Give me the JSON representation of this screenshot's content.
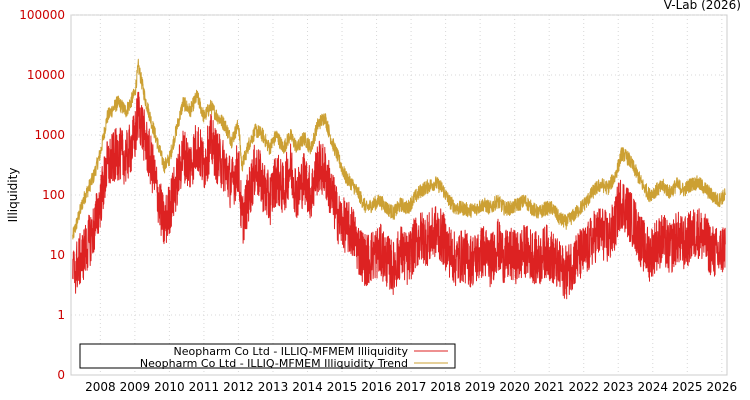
{
  "credit": "V-Lab (2026)",
  "chart_data": {
    "type": "line",
    "title": "",
    "xlabel": "",
    "ylabel": "Illiquidity",
    "yscale": "log",
    "ylim": [
      0.1,
      100000
    ],
    "xlim": [
      2007.15,
      2026.15
    ],
    "y_ticks": [
      {
        "value": 0.1,
        "label": "0"
      },
      {
        "value": 1,
        "label": "1"
      },
      {
        "value": 10,
        "label": "10"
      },
      {
        "value": 100,
        "label": "100"
      },
      {
        "value": 1000,
        "label": "1000"
      },
      {
        "value": 10000,
        "label": "10000"
      },
      {
        "value": 100000,
        "label": "100000"
      }
    ],
    "x_ticks": [
      "2008",
      "2009",
      "2010",
      "2011",
      "2012",
      "2013",
      "2014",
      "2015",
      "2016",
      "2017",
      "2018",
      "2019",
      "2020",
      "2021",
      "2022",
      "2023",
      "2024",
      "2025",
      "2026"
    ],
    "grid": true,
    "legend_position": "bottom-left",
    "series": [
      {
        "name": "Neopharm Co Ltd - ILLIQ-MFMEM Illiquidity",
        "color": "#dd2222",
        "x": [
          2007.2,
          2007.5,
          2007.8,
          2008.0,
          2008.2,
          2008.5,
          2008.75,
          2009.0,
          2009.1,
          2009.3,
          2009.5,
          2009.7,
          2009.85,
          2010.0,
          2010.2,
          2010.4,
          2010.6,
          2010.8,
          2011.0,
          2011.2,
          2011.4,
          2011.6,
          2011.8,
          2012.0,
          2012.1,
          2012.3,
          2012.5,
          2012.7,
          2012.9,
          2013.1,
          2013.3,
          2013.5,
          2013.7,
          2013.9,
          2014.1,
          2014.3,
          2014.5,
          2014.7,
          2014.9,
          2015.1,
          2015.3,
          2015.5,
          2015.7,
          2015.9,
          2016.1,
          2016.3,
          2016.5,
          2016.7,
          2016.9,
          2017.1,
          2017.3,
          2017.5,
          2017.7,
          2017.9,
          2018.1,
          2018.3,
          2018.5,
          2018.7,
          2018.9,
          2019.1,
          2019.3,
          2019.5,
          2019.7,
          2019.9,
          2020.1,
          2020.3,
          2020.5,
          2020.7,
          2020.9,
          2021.1,
          2021.3,
          2021.5,
          2021.7,
          2021.9,
          2022.1,
          2022.3,
          2022.5,
          2022.7,
          2022.9,
          2023.0,
          2023.1,
          2023.3,
          2023.5,
          2023.7,
          2023.9,
          2024.1,
          2024.3,
          2024.5,
          2024.7,
          2024.9,
          2025.1,
          2025.3,
          2025.5,
          2025.7,
          2025.9,
          2026.0,
          2026.1
        ],
        "values": [
          5,
          10,
          25,
          80,
          300,
          500,
          400,
          900,
          2500,
          800,
          300,
          80,
          30,
          60,
          150,
          500,
          300,
          700,
          300,
          800,
          400,
          300,
          150,
          300,
          35,
          100,
          300,
          150,
          80,
          200,
          120,
          300,
          100,
          200,
          100,
          300,
          250,
          100,
          40,
          30,
          25,
          12,
          8,
          10,
          12,
          8,
          6,
          12,
          8,
          15,
          20,
          18,
          25,
          20,
          12,
          8,
          10,
          8,
          9,
          12,
          8,
          15,
          9,
          10,
          9,
          12,
          10,
          8,
          12,
          9,
          6,
          5,
          8,
          10,
          12,
          20,
          25,
          18,
          30,
          60,
          80,
          50,
          30,
          15,
          10,
          15,
          18,
          12,
          20,
          15,
          20,
          25,
          18,
          12,
          10,
          12,
          15
        ]
      },
      {
        "name": "Neopharm Co Ltd - ILLIQ-MFMEM Illiquidity Trend",
        "color": "#cca033",
        "x": [
          2007.2,
          2007.5,
          2007.8,
          2008.0,
          2008.2,
          2008.5,
          2008.75,
          2009.0,
          2009.1,
          2009.3,
          2009.5,
          2009.7,
          2009.85,
          2010.0,
          2010.2,
          2010.4,
          2010.6,
          2010.8,
          2011.0,
          2011.2,
          2011.4,
          2011.6,
          2011.8,
          2012.0,
          2012.1,
          2012.3,
          2012.5,
          2012.7,
          2012.9,
          2013.1,
          2013.3,
          2013.5,
          2013.7,
          2013.9,
          2014.1,
          2014.3,
          2014.5,
          2014.7,
          2014.9,
          2015.1,
          2015.3,
          2015.5,
          2015.7,
          2015.9,
          2016.1,
          2016.3,
          2016.5,
          2016.7,
          2016.9,
          2017.1,
          2017.3,
          2017.5,
          2017.7,
          2017.9,
          2018.1,
          2018.3,
          2018.5,
          2018.7,
          2018.9,
          2019.1,
          2019.3,
          2019.5,
          2019.7,
          2019.9,
          2020.1,
          2020.3,
          2020.5,
          2020.7,
          2020.9,
          2021.1,
          2021.3,
          2021.5,
          2021.7,
          2021.9,
          2022.1,
          2022.3,
          2022.5,
          2022.7,
          2022.9,
          2023.0,
          2023.1,
          2023.3,
          2023.5,
          2023.7,
          2023.9,
          2024.1,
          2024.3,
          2024.5,
          2024.7,
          2024.9,
          2025.1,
          2025.3,
          2025.5,
          2025.7,
          2025.9,
          2026.0,
          2026.1
        ],
        "values": [
          20,
          80,
          200,
          500,
          2000,
          3500,
          2500,
          5000,
          14000,
          4000,
          1500,
          600,
          300,
          400,
          1200,
          3500,
          2500,
          4500,
          2000,
          3000,
          2000,
          1500,
          800,
          1500,
          300,
          700,
          1200,
          1000,
          600,
          1000,
          600,
          1000,
          600,
          900,
          600,
          1500,
          2000,
          800,
          400,
          200,
          150,
          100,
          60,
          70,
          80,
          60,
          50,
          70,
          60,
          90,
          120,
          140,
          160,
          130,
          80,
          60,
          60,
          55,
          60,
          70,
          60,
          80,
          60,
          60,
          70,
          80,
          60,
          50,
          60,
          60,
          40,
          35,
          45,
          60,
          80,
          120,
          150,
          130,
          200,
          300,
          500,
          400,
          250,
          150,
          100,
          120,
          140,
          110,
          150,
          120,
          150,
          160,
          130,
          100,
          80,
          90,
          100
        ]
      }
    ]
  }
}
